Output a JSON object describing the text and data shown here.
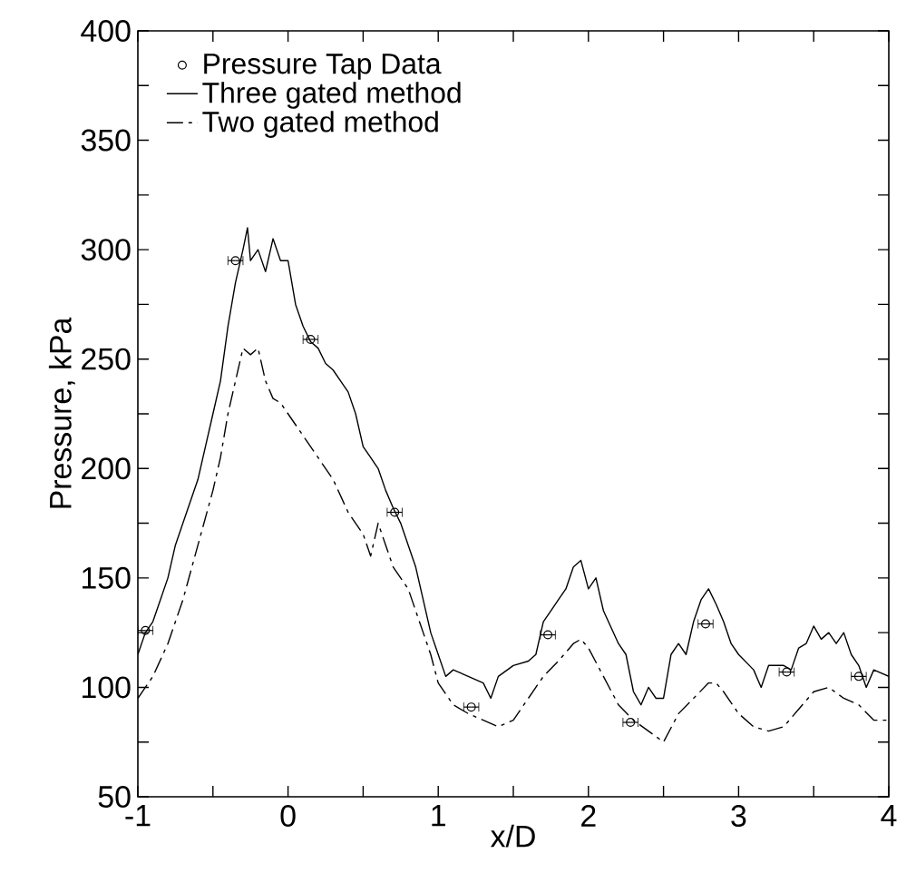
{
  "chart_data": {
    "type": "line",
    "xlabel": "x/D",
    "ylabel": "Pressure, kPa",
    "xlim": [
      -1,
      4
    ],
    "ylim": [
      50,
      400
    ],
    "xticks": [
      -1,
      {
        "value": -0.5,
        "label": null
      },
      0,
      {
        "value": 0.5,
        "label": null
      },
      1,
      {
        "value": 1.5,
        "label": null
      },
      2,
      {
        "value": 2.5,
        "label": null
      },
      3,
      {
        "value": 3.5,
        "label": null
      },
      4
    ],
    "yticks": [
      50,
      {
        "value": 75,
        "label": null
      },
      100,
      {
        "value": 125,
        "label": null
      },
      150,
      {
        "value": 175,
        "label": null
      },
      200,
      {
        "value": 225,
        "label": null
      },
      250,
      {
        "value": 275,
        "label": null
      },
      300,
      {
        "value": 325,
        "label": null
      },
      350,
      {
        "value": 375,
        "label": null
      },
      400
    ],
    "legend": "top left",
    "grid": false,
    "series": [
      {
        "name": "Pressure Tap Data",
        "type": "scatter",
        "marker": "circle",
        "color": "#000000",
        "x": [
          -0.95,
          -0.35,
          0.15,
          0.71,
          1.22,
          1.73,
          2.28,
          2.78,
          3.32,
          3.8
        ],
        "values": [
          126,
          295,
          259,
          180,
          91,
          124,
          84,
          129,
          107,
          105
        ],
        "xerrors": [
          0.05,
          0.05,
          0.05,
          0.05,
          0.05,
          0.05,
          0.05,
          0.05,
          0.05,
          0.05
        ]
      },
      {
        "name": "Three gated method",
        "marker": "none",
        "line_style": "solid",
        "color": "#000000",
        "x": [
          -1,
          -0.95,
          -0.9,
          -0.85,
          -0.8,
          -0.75,
          -0.7,
          -0.65,
          -0.6,
          -0.55,
          -0.5,
          -0.45,
          -0.4,
          -0.35,
          -0.3,
          -0.27,
          -0.25,
          -0.2,
          -0.15,
          -0.1,
          -0.05,
          0,
          0.05,
          0.1,
          0.15,
          0.2,
          0.25,
          0.3,
          0.35,
          0.4,
          0.45,
          0.5,
          0.55,
          0.6,
          0.65,
          0.7,
          0.75,
          0.8,
          0.85,
          0.9,
          0.95,
          1.0,
          1.05,
          1.1,
          1.2,
          1.3,
          1.35,
          1.4,
          1.5,
          1.6,
          1.65,
          1.7,
          1.75,
          1.8,
          1.85,
          1.9,
          1.95,
          2.0,
          2.05,
          2.1,
          2.2,
          2.25,
          2.3,
          2.35,
          2.4,
          2.45,
          2.5,
          2.55,
          2.6,
          2.65,
          2.7,
          2.75,
          2.8,
          2.85,
          2.9,
          2.95,
          3.0,
          3.1,
          3.15,
          3.2,
          3.3,
          3.35,
          3.4,
          3.45,
          3.5,
          3.55,
          3.6,
          3.65,
          3.7,
          3.75,
          3.8,
          3.85,
          3.9,
          4.0
        ],
        "values": [
          115,
          125,
          130,
          140,
          150,
          165,
          175,
          185,
          195,
          210,
          225,
          240,
          265,
          285,
          300,
          310,
          295,
          300,
          290,
          305,
          295,
          295,
          275,
          265,
          258,
          255,
          248,
          245,
          240,
          235,
          225,
          210,
          205,
          200,
          190,
          182,
          175,
          165,
          155,
          140,
          125,
          115,
          105,
          108,
          105,
          102,
          95,
          105,
          110,
          112,
          115,
          130,
          135,
          140,
          145,
          155,
          158,
          145,
          150,
          135,
          120,
          115,
          98,
          92,
          100,
          95,
          95,
          115,
          120,
          115,
          130,
          140,
          145,
          138,
          130,
          120,
          115,
          108,
          100,
          110,
          110,
          108,
          118,
          120,
          128,
          122,
          125,
          120,
          125,
          115,
          110,
          100,
          108,
          105
        ]
      },
      {
        "name": "Two gated method",
        "marker": "none",
        "line_style": "dashed",
        "color": "#000000",
        "x": [
          -1,
          -0.9,
          -0.8,
          -0.7,
          -0.6,
          -0.5,
          -0.45,
          -0.4,
          -0.35,
          -0.3,
          -0.25,
          -0.2,
          -0.15,
          -0.1,
          -0.05,
          0,
          0.1,
          0.2,
          0.3,
          0.4,
          0.5,
          0.55,
          0.6,
          0.65,
          0.7,
          0.8,
          0.9,
          0.95,
          1.0,
          1.1,
          1.2,
          1.3,
          1.4,
          1.5,
          1.6,
          1.7,
          1.8,
          1.9,
          1.95,
          2.0,
          2.1,
          2.2,
          2.3,
          2.4,
          2.5,
          2.6,
          2.7,
          2.8,
          2.85,
          2.9,
          3.0,
          3.1,
          3.2,
          3.3,
          3.4,
          3.5,
          3.6,
          3.7,
          3.8,
          3.9,
          4.0
        ],
        "values": [
          95,
          105,
          120,
          140,
          165,
          190,
          205,
          225,
          240,
          255,
          252,
          255,
          240,
          232,
          230,
          225,
          215,
          205,
          195,
          180,
          170,
          160,
          175,
          165,
          155,
          145,
          125,
          115,
          102,
          92,
          88,
          85,
          82,
          85,
          95,
          105,
          112,
          120,
          122,
          118,
          105,
          92,
          85,
          80,
          75,
          88,
          95,
          102,
          102,
          98,
          88,
          82,
          80,
          82,
          90,
          98,
          100,
          95,
          92,
          85,
          85
        ]
      }
    ]
  }
}
